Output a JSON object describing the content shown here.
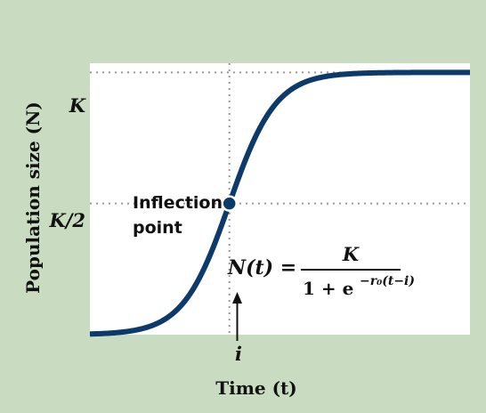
{
  "colors": {
    "panel_background": "#c9dcc1",
    "plot_background": "#ffffff",
    "curve": "#0b3a6b",
    "guide": "#9a9a9a",
    "text": "#111111"
  },
  "chart_data": {
    "type": "line",
    "title": "",
    "xlabel": "Time (t)",
    "ylabel": "Population size (N)",
    "xlim": [
      -4,
      6.9
    ],
    "ylim": [
      0,
      1.035
    ],
    "grid": false,
    "y_ticks": [
      {
        "value": 1.0,
        "label": "K"
      },
      {
        "value": 0.5,
        "label": "K/2"
      }
    ],
    "x_ticks": [
      {
        "value": 0,
        "label": "i"
      }
    ],
    "series": [
      {
        "name": "",
        "curve": "logistic",
        "parameters": {
          "K": 1.0,
          "r0": 1.5,
          "i": 0
        }
      }
    ],
    "annotations": {
      "inflection_label_line1": "Inflection",
      "inflection_label_line2": "point",
      "inflection_point": {
        "x": 0,
        "y": 0.5
      },
      "equation_lhs": "N(t) =",
      "equation_numerator": "K",
      "equation_denominator": "1 + e",
      "equation_exponent": "−r₀(t−i)"
    }
  }
}
